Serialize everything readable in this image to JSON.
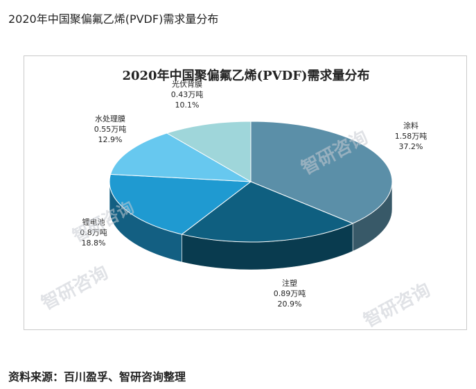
{
  "page": {
    "title": "2020年中国聚偏氟乙烯(PVDF)需求量分布",
    "source": "资料来源：百川盈孚、智研咨询整理"
  },
  "watermark": {
    "text": "智研咨询",
    "url": "www.chyxx.com"
  },
  "chart_data": {
    "type": "pie",
    "title": "2020年中国聚偏氟乙烯(PVDF)需求量分布",
    "unit": "万吨",
    "slices": [
      {
        "name": "涂料",
        "value": 1.58,
        "value_label": "1.58万吨",
        "percent_label": "37.2%",
        "color": "#5b8fa8"
      },
      {
        "name": "注塑",
        "value": 0.89,
        "value_label": "0.89万吨",
        "percent_label": "20.9%",
        "color": "#0f5f80"
      },
      {
        "name": "锂电池",
        "value": 0.8,
        "value_label": "0.8万吨",
        "percent_label": "18.8%",
        "color": "#1f9ad1"
      },
      {
        "name": "水处理膜",
        "value": 0.55,
        "value_label": "0.55万吨",
        "percent_label": "12.9%",
        "color": "#67c8ef"
      },
      {
        "name": "光伏背膜",
        "value": 0.43,
        "value_label": "0.43万吨",
        "percent_label": "10.1%",
        "color": "#9fd6da"
      }
    ]
  }
}
